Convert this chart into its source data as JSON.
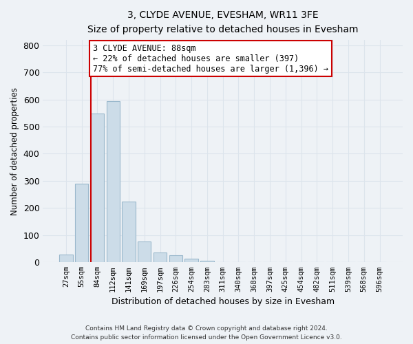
{
  "title": "3, CLYDE AVENUE, EVESHAM, WR11 3FE",
  "subtitle": "Size of property relative to detached houses in Evesham",
  "xlabel": "Distribution of detached houses by size in Evesham",
  "ylabel": "Number of detached properties",
  "bar_labels": [
    "27sqm",
    "55sqm",
    "84sqm",
    "112sqm",
    "141sqm",
    "169sqm",
    "197sqm",
    "226sqm",
    "254sqm",
    "283sqm",
    "311sqm",
    "340sqm",
    "368sqm",
    "397sqm",
    "425sqm",
    "454sqm",
    "482sqm",
    "511sqm",
    "539sqm",
    "568sqm",
    "596sqm"
  ],
  "bar_values": [
    28,
    290,
    548,
    595,
    225,
    78,
    37,
    25,
    13,
    5,
    0,
    0,
    0,
    0,
    0,
    0,
    0,
    0,
    0,
    0,
    0
  ],
  "bar_color": "#ccdce8",
  "bar_edge_color": "#9ab8cc",
  "property_line_color": "#cc0000",
  "annotation_text": "3 CLYDE AVENUE: 88sqm\n← 22% of detached houses are smaller (397)\n77% of semi-detached houses are larger (1,396) →",
  "annotation_box_color": "#ffffff",
  "annotation_box_edge": "#cc0000",
  "ylim": [
    0,
    820
  ],
  "yticks": [
    0,
    100,
    200,
    300,
    400,
    500,
    600,
    700,
    800
  ],
  "footer_line1": "Contains HM Land Registry data © Crown copyright and database right 2024.",
  "footer_line2": "Contains public sector information licensed under the Open Government Licence v3.0.",
  "background_color": "#eef2f6",
  "plot_bg_color": "#eef2f6",
  "grid_color": "#dce4ec"
}
